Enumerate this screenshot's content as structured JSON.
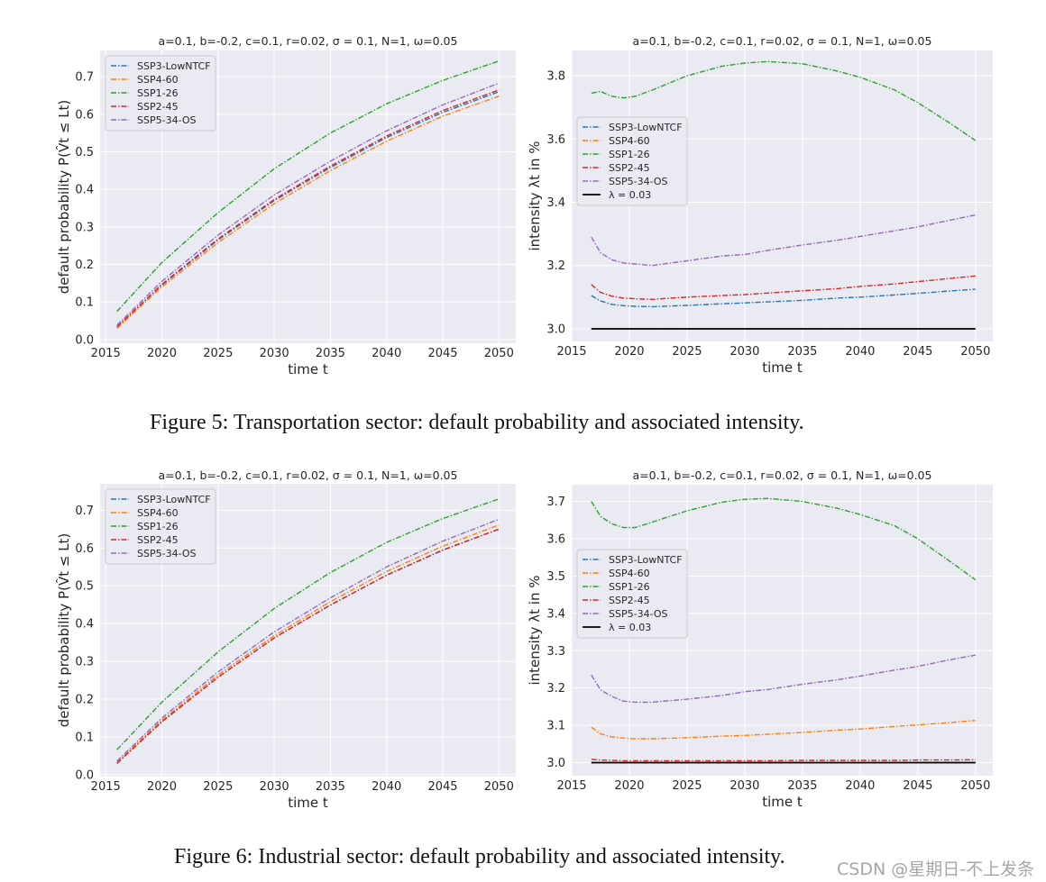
{
  "figures": [
    {
      "caption": "Figure 5: Transportation sector: default probability and associated intensity."
    },
    {
      "caption": "Figure 6: Industrial sector: default probability and associated intensity."
    }
  ],
  "watermark": "CSDN @星期日-不上发条",
  "colors": {
    "SSP3-LowNTCF": "#1f77b4",
    "SSP4-60": "#ff7f0e",
    "SSP1-26": "#2ca02c",
    "SSP2-45": "#d62728",
    "SSP5-34-OS": "#9467bd",
    "lambda": "#000000",
    "plot_bg": "#eaeaf2",
    "grid": "#ffffff"
  },
  "chart_data": [
    {
      "id": "fig5-left",
      "type": "line",
      "title": "a=0.1, b=-0.2, c=0.1, r=0.02, σ = 0.1, N=1, ω=0.05",
      "xlabel": "time t",
      "ylabel": "default probability   P(V̂t ≤ Lt)",
      "ylabel_plain": "default probability",
      "ylabel_math": "P(V̂",
      "xlim": [
        2014.5,
        2051.5
      ],
      "ylim": [
        -0.01,
        0.77
      ],
      "xticks": [
        2015,
        2020,
        2025,
        2030,
        2035,
        2040,
        2045,
        2050
      ],
      "yticks": [
        0.0,
        0.1,
        0.2,
        0.3,
        0.4,
        0.5,
        0.6,
        0.7
      ],
      "ytick_labels": [
        "0.0",
        "0.1",
        "0.2",
        "0.3",
        "0.4",
        "0.5",
        "0.6",
        "0.7"
      ],
      "grid": true,
      "legend": "top-left",
      "x": [
        2016,
        2020,
        2025,
        2030,
        2035,
        2040,
        2045,
        2050
      ],
      "series": [
        {
          "name": "SSP3-LowNTCF",
          "values": [
            0.033,
            0.145,
            0.265,
            0.37,
            0.458,
            0.538,
            0.605,
            0.66
          ]
        },
        {
          "name": "SSP4-60",
          "values": [
            0.03,
            0.14,
            0.258,
            0.362,
            0.45,
            0.528,
            0.595,
            0.648
          ]
        },
        {
          "name": "SSP1-26",
          "values": [
            0.075,
            0.205,
            0.338,
            0.455,
            0.55,
            0.628,
            0.69,
            0.742
          ]
        },
        {
          "name": "SSP2-45",
          "values": [
            0.034,
            0.147,
            0.268,
            0.373,
            0.462,
            0.542,
            0.61,
            0.665
          ]
        },
        {
          "name": "SSP5-34-OS",
          "values": [
            0.038,
            0.155,
            0.278,
            0.385,
            0.475,
            0.556,
            0.625,
            0.683
          ]
        }
      ]
    },
    {
      "id": "fig5-right",
      "type": "line",
      "title": "a=0.1, b=-0.2, c=0.1, r=0.02, σ = 0.1, N=1, ω=0.05",
      "xlabel": "time t",
      "ylabel": "intensity   λt in %",
      "xlim": [
        2015,
        2051.5
      ],
      "ylim": [
        2.96,
        3.88
      ],
      "xticks": [
        2015,
        2020,
        2025,
        2030,
        2035,
        2040,
        2045,
        2050
      ],
      "yticks": [
        3.0,
        3.2,
        3.4,
        3.6,
        3.8
      ],
      "ytick_labels": [
        "3.0",
        "3.2",
        "3.4",
        "3.6",
        "3.8"
      ],
      "grid": true,
      "legend": "center-left",
      "x": [
        2016.7,
        2017.5,
        2018.5,
        2019.5,
        2020.5,
        2022,
        2025,
        2028,
        2030,
        2032,
        2035,
        2038,
        2040,
        2043,
        2045,
        2048,
        2050
      ],
      "series": [
        {
          "name": "SSP3-LowNTCF",
          "values": [
            3.105,
            3.088,
            3.077,
            3.073,
            3.071,
            3.07,
            3.074,
            3.079,
            3.082,
            3.085,
            3.09,
            3.097,
            3.1,
            3.107,
            3.112,
            3.12,
            3.125
          ]
        },
        {
          "name": "SSP4-60",
          "values": [
            3.0,
            3.0,
            3.0,
            3.0,
            3.0,
            3.0,
            3.0,
            3.0,
            3.0,
            3.0,
            3.0,
            3.0,
            3.0,
            3.0,
            3.0,
            3.0,
            3.0
          ]
        },
        {
          "name": "SSP1-26",
          "values": [
            3.745,
            3.75,
            3.735,
            3.73,
            3.735,
            3.755,
            3.8,
            3.83,
            3.84,
            3.845,
            3.838,
            3.815,
            3.795,
            3.755,
            3.715,
            3.645,
            3.595
          ]
        },
        {
          "name": "SSP2-45",
          "values": [
            3.14,
            3.115,
            3.103,
            3.097,
            3.095,
            3.093,
            3.1,
            3.105,
            3.108,
            3.113,
            3.12,
            3.127,
            3.134,
            3.142,
            3.149,
            3.16,
            3.167
          ]
        },
        {
          "name": "SSP5-34-OS",
          "values": [
            3.29,
            3.24,
            3.218,
            3.208,
            3.205,
            3.2,
            3.215,
            3.23,
            3.235,
            3.248,
            3.265,
            3.28,
            3.292,
            3.31,
            3.322,
            3.345,
            3.36
          ]
        },
        {
          "name": "λ = 0.03",
          "values": [
            3.0,
            3.0,
            3.0,
            3.0,
            3.0,
            3.0,
            3.0,
            3.0,
            3.0,
            3.0,
            3.0,
            3.0,
            3.0,
            3.0,
            3.0,
            3.0,
            3.0
          ],
          "style": "solid"
        }
      ]
    },
    {
      "id": "fig6-left",
      "type": "line",
      "title": "a=0.1, b=-0.2, c=0.1, r=0.02, σ = 0.1, N=1, ω=0.05",
      "xlabel": "time t",
      "ylabel": "default probability   P(V̂t ≤ Lt)",
      "ylabel_plain": "default probability",
      "ylabel_math": "P(V̂",
      "xlim": [
        2014.5,
        2051.5
      ],
      "ylim": [
        -0.005,
        0.77
      ],
      "xticks": [
        2015,
        2020,
        2025,
        2030,
        2035,
        2040,
        2045,
        2050
      ],
      "yticks": [
        0.0,
        0.1,
        0.2,
        0.3,
        0.4,
        0.5,
        0.6,
        0.7
      ],
      "ytick_labels": [
        "0.0",
        "0.1",
        "0.2",
        "0.3",
        "0.4",
        "0.5",
        "0.6",
        "0.7"
      ],
      "grid": true,
      "legend": "top-left",
      "x": [
        2016,
        2020,
        2025,
        2030,
        2035,
        2040,
        2045,
        2050
      ],
      "series": [
        {
          "name": "SSP3-LowNTCF",
          "values": [
            0.03,
            0.14,
            0.258,
            0.362,
            0.449,
            0.528,
            0.595,
            0.65
          ]
        },
        {
          "name": "SSP4-60",
          "values": [
            0.032,
            0.144,
            0.264,
            0.368,
            0.458,
            0.538,
            0.605,
            0.661
          ]
        },
        {
          "name": "SSP1-26",
          "values": [
            0.066,
            0.192,
            0.325,
            0.44,
            0.535,
            0.615,
            0.678,
            0.73
          ]
        },
        {
          "name": "SSP2-45",
          "values": [
            0.03,
            0.14,
            0.258,
            0.362,
            0.449,
            0.528,
            0.594,
            0.65
          ]
        },
        {
          "name": "SSP5-34-OS",
          "values": [
            0.036,
            0.15,
            0.272,
            0.378,
            0.468,
            0.55,
            0.618,
            0.676
          ]
        }
      ]
    },
    {
      "id": "fig6-right",
      "type": "line",
      "title": "a=0.1, b=-0.2, c=0.1, r=0.02, σ = 0.1, N=1, ω=0.05",
      "xlabel": "time t",
      "ylabel": "intensity   λt in %",
      "xlim": [
        2015,
        2051.5
      ],
      "ylim": [
        2.965,
        3.745
      ],
      "xticks": [
        2015,
        2020,
        2025,
        2030,
        2035,
        2040,
        2045,
        2050
      ],
      "yticks": [
        3.0,
        3.1,
        3.2,
        3.3,
        3.4,
        3.5,
        3.6,
        3.7
      ],
      "ytick_labels": [
        "3.0",
        "3.1",
        "3.2",
        "3.3",
        "3.4",
        "3.5",
        "3.6",
        "3.7"
      ],
      "grid": true,
      "legend": "center-left",
      "x": [
        2016.7,
        2017.5,
        2018.5,
        2019.5,
        2020.5,
        2022,
        2025,
        2028,
        2030,
        2032,
        2035,
        2038,
        2040,
        2043,
        2045,
        2048,
        2050
      ],
      "series": [
        {
          "name": "SSP3-LowNTCF",
          "values": [
            3.0,
            3.0,
            3.0,
            3.0,
            3.0,
            3.0,
            3.0,
            3.0,
            3.0,
            3.0,
            3.0,
            3.0,
            3.0,
            3.0,
            3.0,
            3.0,
            3.0
          ]
        },
        {
          "name": "SSP4-60",
          "values": [
            3.095,
            3.077,
            3.069,
            3.066,
            3.064,
            3.064,
            3.067,
            3.071,
            3.073,
            3.076,
            3.081,
            3.087,
            3.09,
            3.097,
            3.101,
            3.108,
            3.113
          ]
        },
        {
          "name": "SSP1-26",
          "values": [
            3.7,
            3.66,
            3.64,
            3.63,
            3.63,
            3.645,
            3.675,
            3.698,
            3.706,
            3.708,
            3.7,
            3.682,
            3.665,
            3.635,
            3.6,
            3.535,
            3.49
          ]
        },
        {
          "name": "SSP2-45",
          "values": [
            3.009,
            3.007,
            3.006,
            3.005,
            3.005,
            3.005,
            3.005,
            3.005,
            3.005,
            3.005,
            3.006,
            3.006,
            3.006,
            3.006,
            3.007,
            3.007,
            3.008
          ]
        },
        {
          "name": "SSP5-34-OS",
          "values": [
            3.235,
            3.195,
            3.177,
            3.165,
            3.162,
            3.162,
            3.17,
            3.18,
            3.19,
            3.196,
            3.21,
            3.222,
            3.232,
            3.248,
            3.258,
            3.277,
            3.288
          ]
        },
        {
          "name": "λ = 0.03",
          "values": [
            3.0,
            3.0,
            3.0,
            3.0,
            3.0,
            3.0,
            3.0,
            3.0,
            3.0,
            3.0,
            3.0,
            3.0,
            3.0,
            3.0,
            3.0,
            3.0,
            3.0
          ],
          "style": "solid"
        }
      ]
    }
  ]
}
